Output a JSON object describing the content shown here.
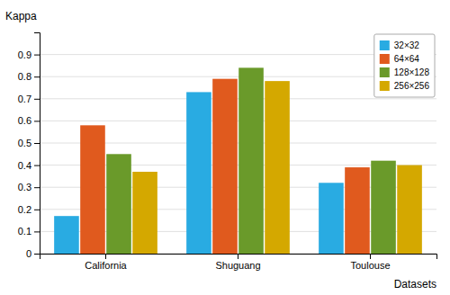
{
  "chart_data": {
    "type": "bar",
    "categories": [
      "California",
      "Shuguang",
      "Toulouse"
    ],
    "series": [
      {
        "name": "32×32",
        "color": "#29ABE2",
        "values": [
          0.17,
          0.73,
          0.32
        ]
      },
      {
        "name": "64×64",
        "color": "#E05A1E",
        "values": [
          0.58,
          0.79,
          0.39
        ]
      },
      {
        "name": "128×128",
        "color": "#6A9A2A",
        "values": [
          0.45,
          0.84,
          0.42
        ]
      },
      {
        "name": "256×256",
        "color": "#D4A800",
        "values": [
          0.37,
          0.78,
          0.4
        ]
      }
    ],
    "ylabel": "Kappa",
    "xlabel": "Datasets",
    "ylim": [
      0,
      1
    ],
    "yticks": [
      0,
      0.1,
      0.2,
      0.3,
      0.4,
      0.5,
      0.6,
      0.7,
      0.8,
      0.9
    ],
    "grid": true,
    "legend": "upper right"
  }
}
